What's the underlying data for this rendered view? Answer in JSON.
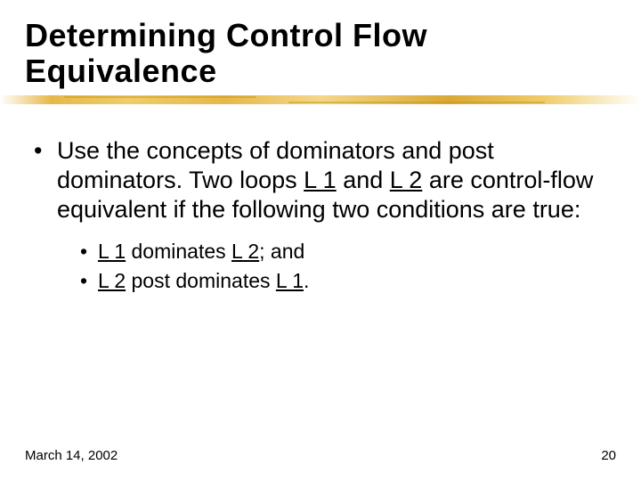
{
  "title": "Determining Control Flow Equivalence",
  "colors": {
    "background": "#ffffff",
    "text": "#000000",
    "rule_gradient": [
      "#e6b84a",
      "#f0cc6a",
      "#f4d78a",
      "#d9a836"
    ]
  },
  "typography": {
    "title_font_family": "Arial Black, Arial, sans-serif",
    "title_font_size_pt": 27,
    "title_font_weight": 900,
    "body_font_family": "Arial, Helvetica, sans-serif",
    "body_font_size_pt": 20,
    "sub_font_size_pt": 17,
    "footer_font_size_pt": 11
  },
  "body": {
    "text_pre": "Use the concepts of dominators and post dominators. Two loops ",
    "u1": "L 1",
    "mid1": " and ",
    "u2": "L 2",
    "text_post": " are control-flow equivalent if the following two conditions are true:"
  },
  "sub": {
    "item1_pre": "",
    "item1_u1": "L 1",
    "item1_mid": " dominates ",
    "item1_u2": "L 2",
    "item1_post": "; and",
    "item2_u1": "L 2",
    "item2_mid": " post dominates ",
    "item2_u2": "L 1",
    "item2_post": "."
  },
  "footer": {
    "date": "March 14, 2002",
    "page": "20"
  }
}
